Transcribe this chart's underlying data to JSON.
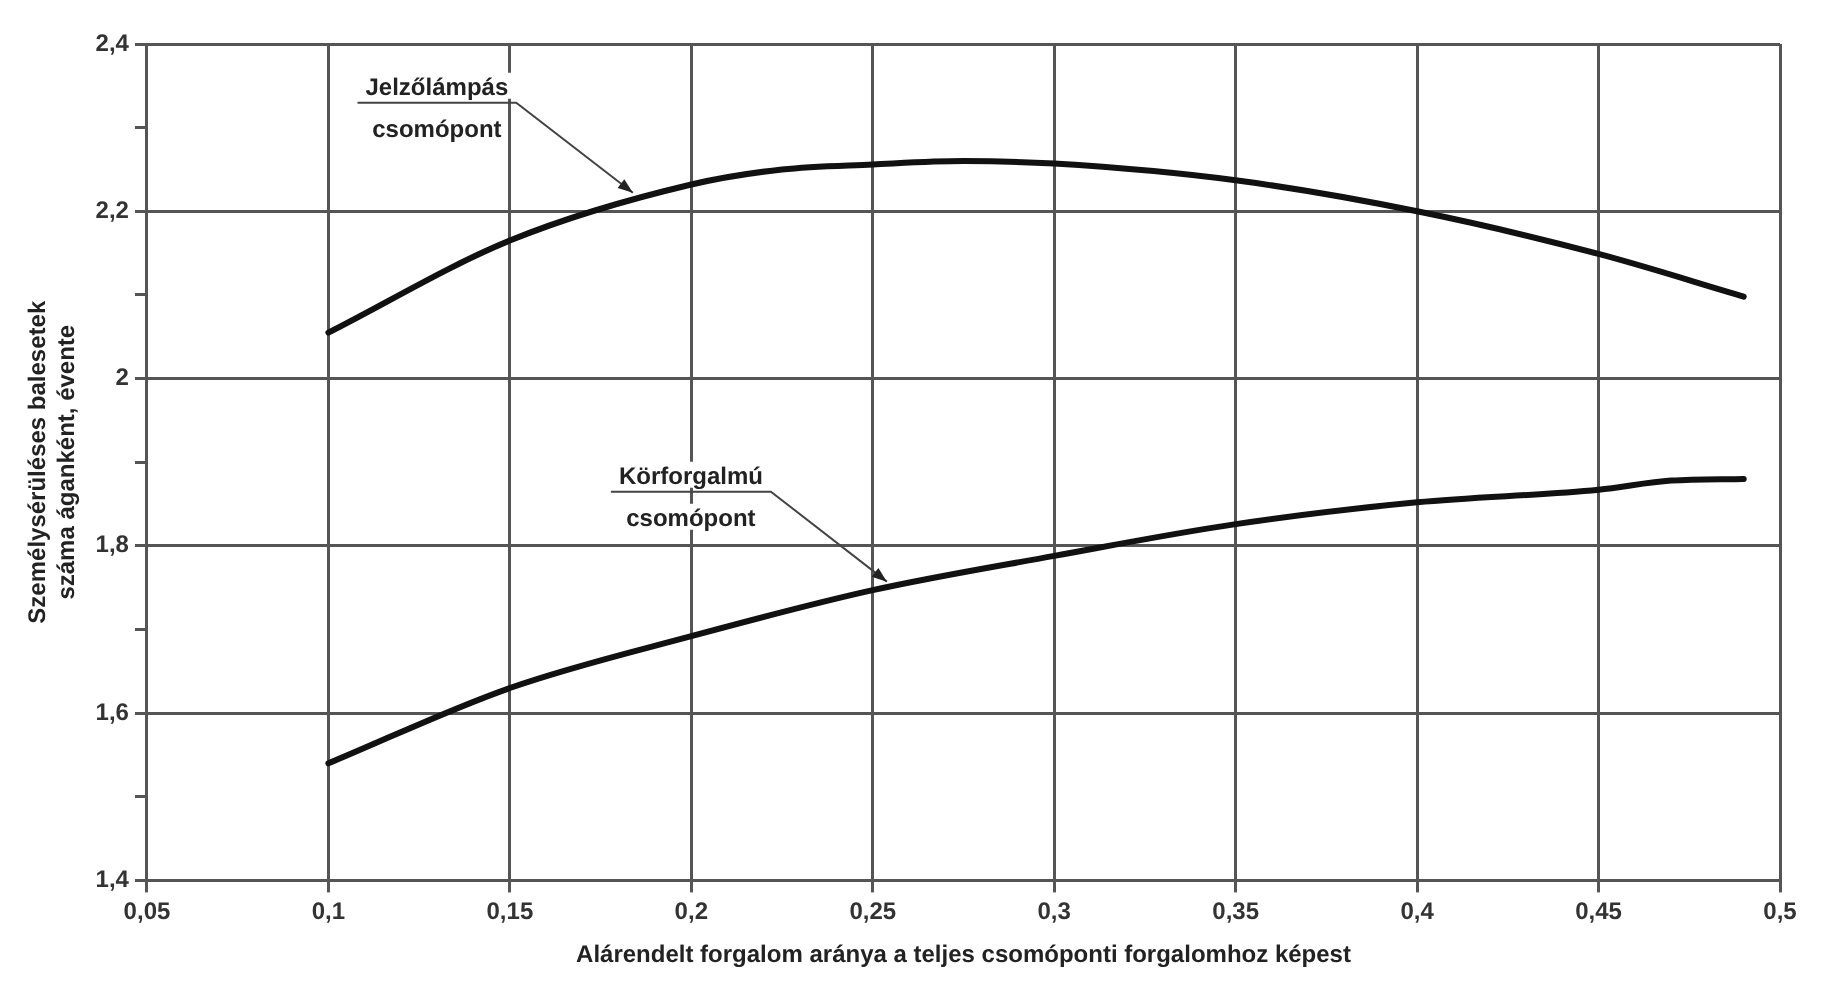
{
  "chart_data": {
    "type": "line",
    "xlabel": "Alárendelt forgalom aránya a teljes csomóponti forgalomhoz képest",
    "ylabel": "Személysérüléses balesetek\nszáma áganként, évente",
    "series": [
      {
        "color": "#111111",
        "x": [
          0.1,
          0.15,
          0.2,
          0.225,
          0.25,
          0.275,
          0.3,
          0.35,
          0.4,
          0.45,
          0.49
        ],
        "values": [
          2.055,
          2.165,
          2.232,
          2.25,
          2.256,
          2.26,
          2.257,
          2.237,
          2.2,
          2.149,
          2.098
        ]
      },
      {
        "color": "#111111",
        "x": [
          0.1,
          0.15,
          0.2,
          0.25,
          0.3,
          0.35,
          0.4,
          0.45,
          0.47,
          0.49
        ],
        "values": [
          1.54,
          1.63,
          1.692,
          1.747,
          1.788,
          1.826,
          1.852,
          1.867,
          1.878,
          1.88
        ]
      }
    ],
    "annotations": [
      {
        "text": "Jelzőlámpás\ncsomópont",
        "x": 0.185,
        "y": 2.215
      },
      {
        "text": "Körforgalmú\ncsomópont",
        "x": 0.255,
        "y": 1.75
      }
    ],
    "xlim": [
      0.05,
      0.5
    ],
    "xticks": [
      {
        "value": 0.05,
        "label": "0,05"
      },
      {
        "value": 0.1,
        "label": "0,1"
      },
      {
        "value": 0.15,
        "label": "0,15"
      },
      {
        "value": 0.2,
        "label": "0,2"
      },
      {
        "value": 0.25,
        "label": "0,25"
      },
      {
        "value": 0.3,
        "label": "0,3"
      },
      {
        "value": 0.35,
        "label": "0,35"
      },
      {
        "value": 0.4,
        "label": "0,4"
      },
      {
        "value": 0.45,
        "label": "0,45"
      },
      {
        "value": 0.5,
        "label": "0,5"
      }
    ],
    "ylim": [
      1.4,
      2.4
    ],
    "yticks": [
      {
        "value": 1.4,
        "label": "1,4"
      },
      {
        "value": 1.5,
        "label": null
      },
      {
        "value": 1.6,
        "label": "1,6"
      },
      {
        "value": 1.7,
        "label": null
      },
      {
        "value": 1.8,
        "label": "1,8"
      },
      {
        "value": 1.9,
        "label": null
      },
      {
        "value": 2,
        "label": "2"
      },
      {
        "value": 2.1,
        "label": null
      },
      {
        "value": 2.2,
        "label": "2,2"
      },
      {
        "value": 2.3,
        "label": null
      },
      {
        "value": 2.4,
        "label": "2,4"
      }
    ],
    "grid": true,
    "legend": false,
    "marker": "none",
    "line_style": "solid"
  }
}
